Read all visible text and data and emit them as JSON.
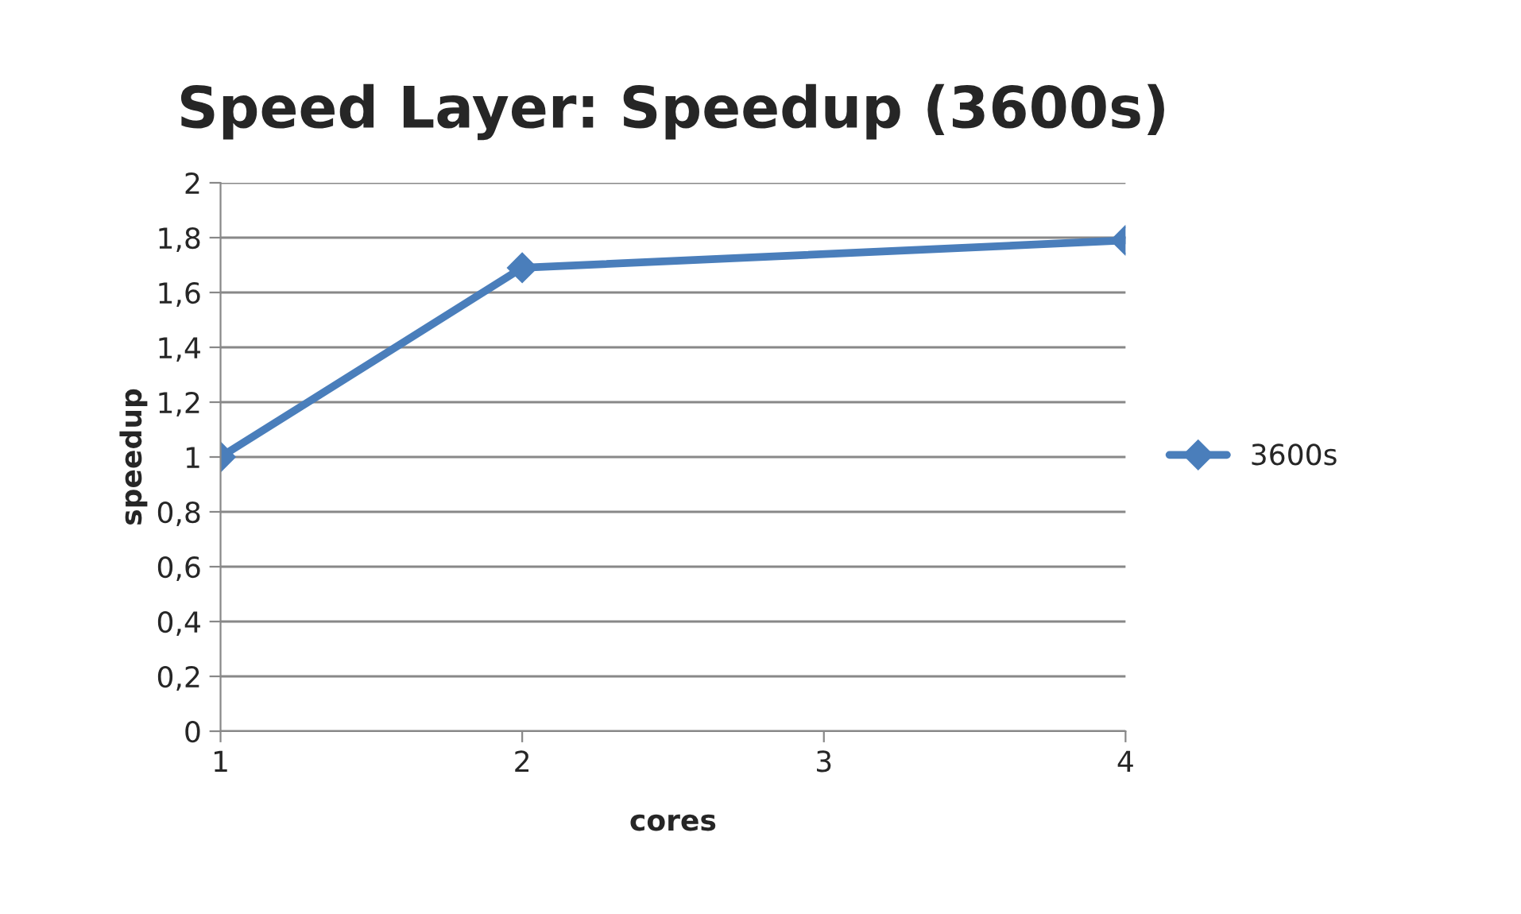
{
  "chart_data": {
    "type": "line",
    "title": "Speed Layer: Speedup (3600s)",
    "xlabel": "cores",
    "ylabel": "speedup",
    "x": [
      1,
      2,
      4
    ],
    "series": [
      {
        "name": "3600s",
        "color": "#4a7ebb",
        "values": [
          1,
          1.69,
          1.79
        ]
      }
    ],
    "xlim": [
      1,
      4
    ],
    "xticks": [
      1,
      2,
      3,
      4
    ],
    "ylim": [
      0,
      2
    ],
    "yticks": [
      {
        "value": 0,
        "label": "0"
      },
      {
        "value": 0.2,
        "label": "0,2"
      },
      {
        "value": 0.4,
        "label": "0,4"
      },
      {
        "value": 0.6,
        "label": "0,6"
      },
      {
        "value": 0.8,
        "label": "0,8"
      },
      {
        "value": 1,
        "label": "1"
      },
      {
        "value": 1.2,
        "label": "1,2"
      },
      {
        "value": 1.4,
        "label": "1,4"
      },
      {
        "value": 1.6,
        "label": "1,6"
      },
      {
        "value": 1.8,
        "label": "1,8"
      },
      {
        "value": 2,
        "label": "2"
      }
    ],
    "grid": "y",
    "legend": "right",
    "marker": "diamond",
    "line_style": "solid"
  }
}
